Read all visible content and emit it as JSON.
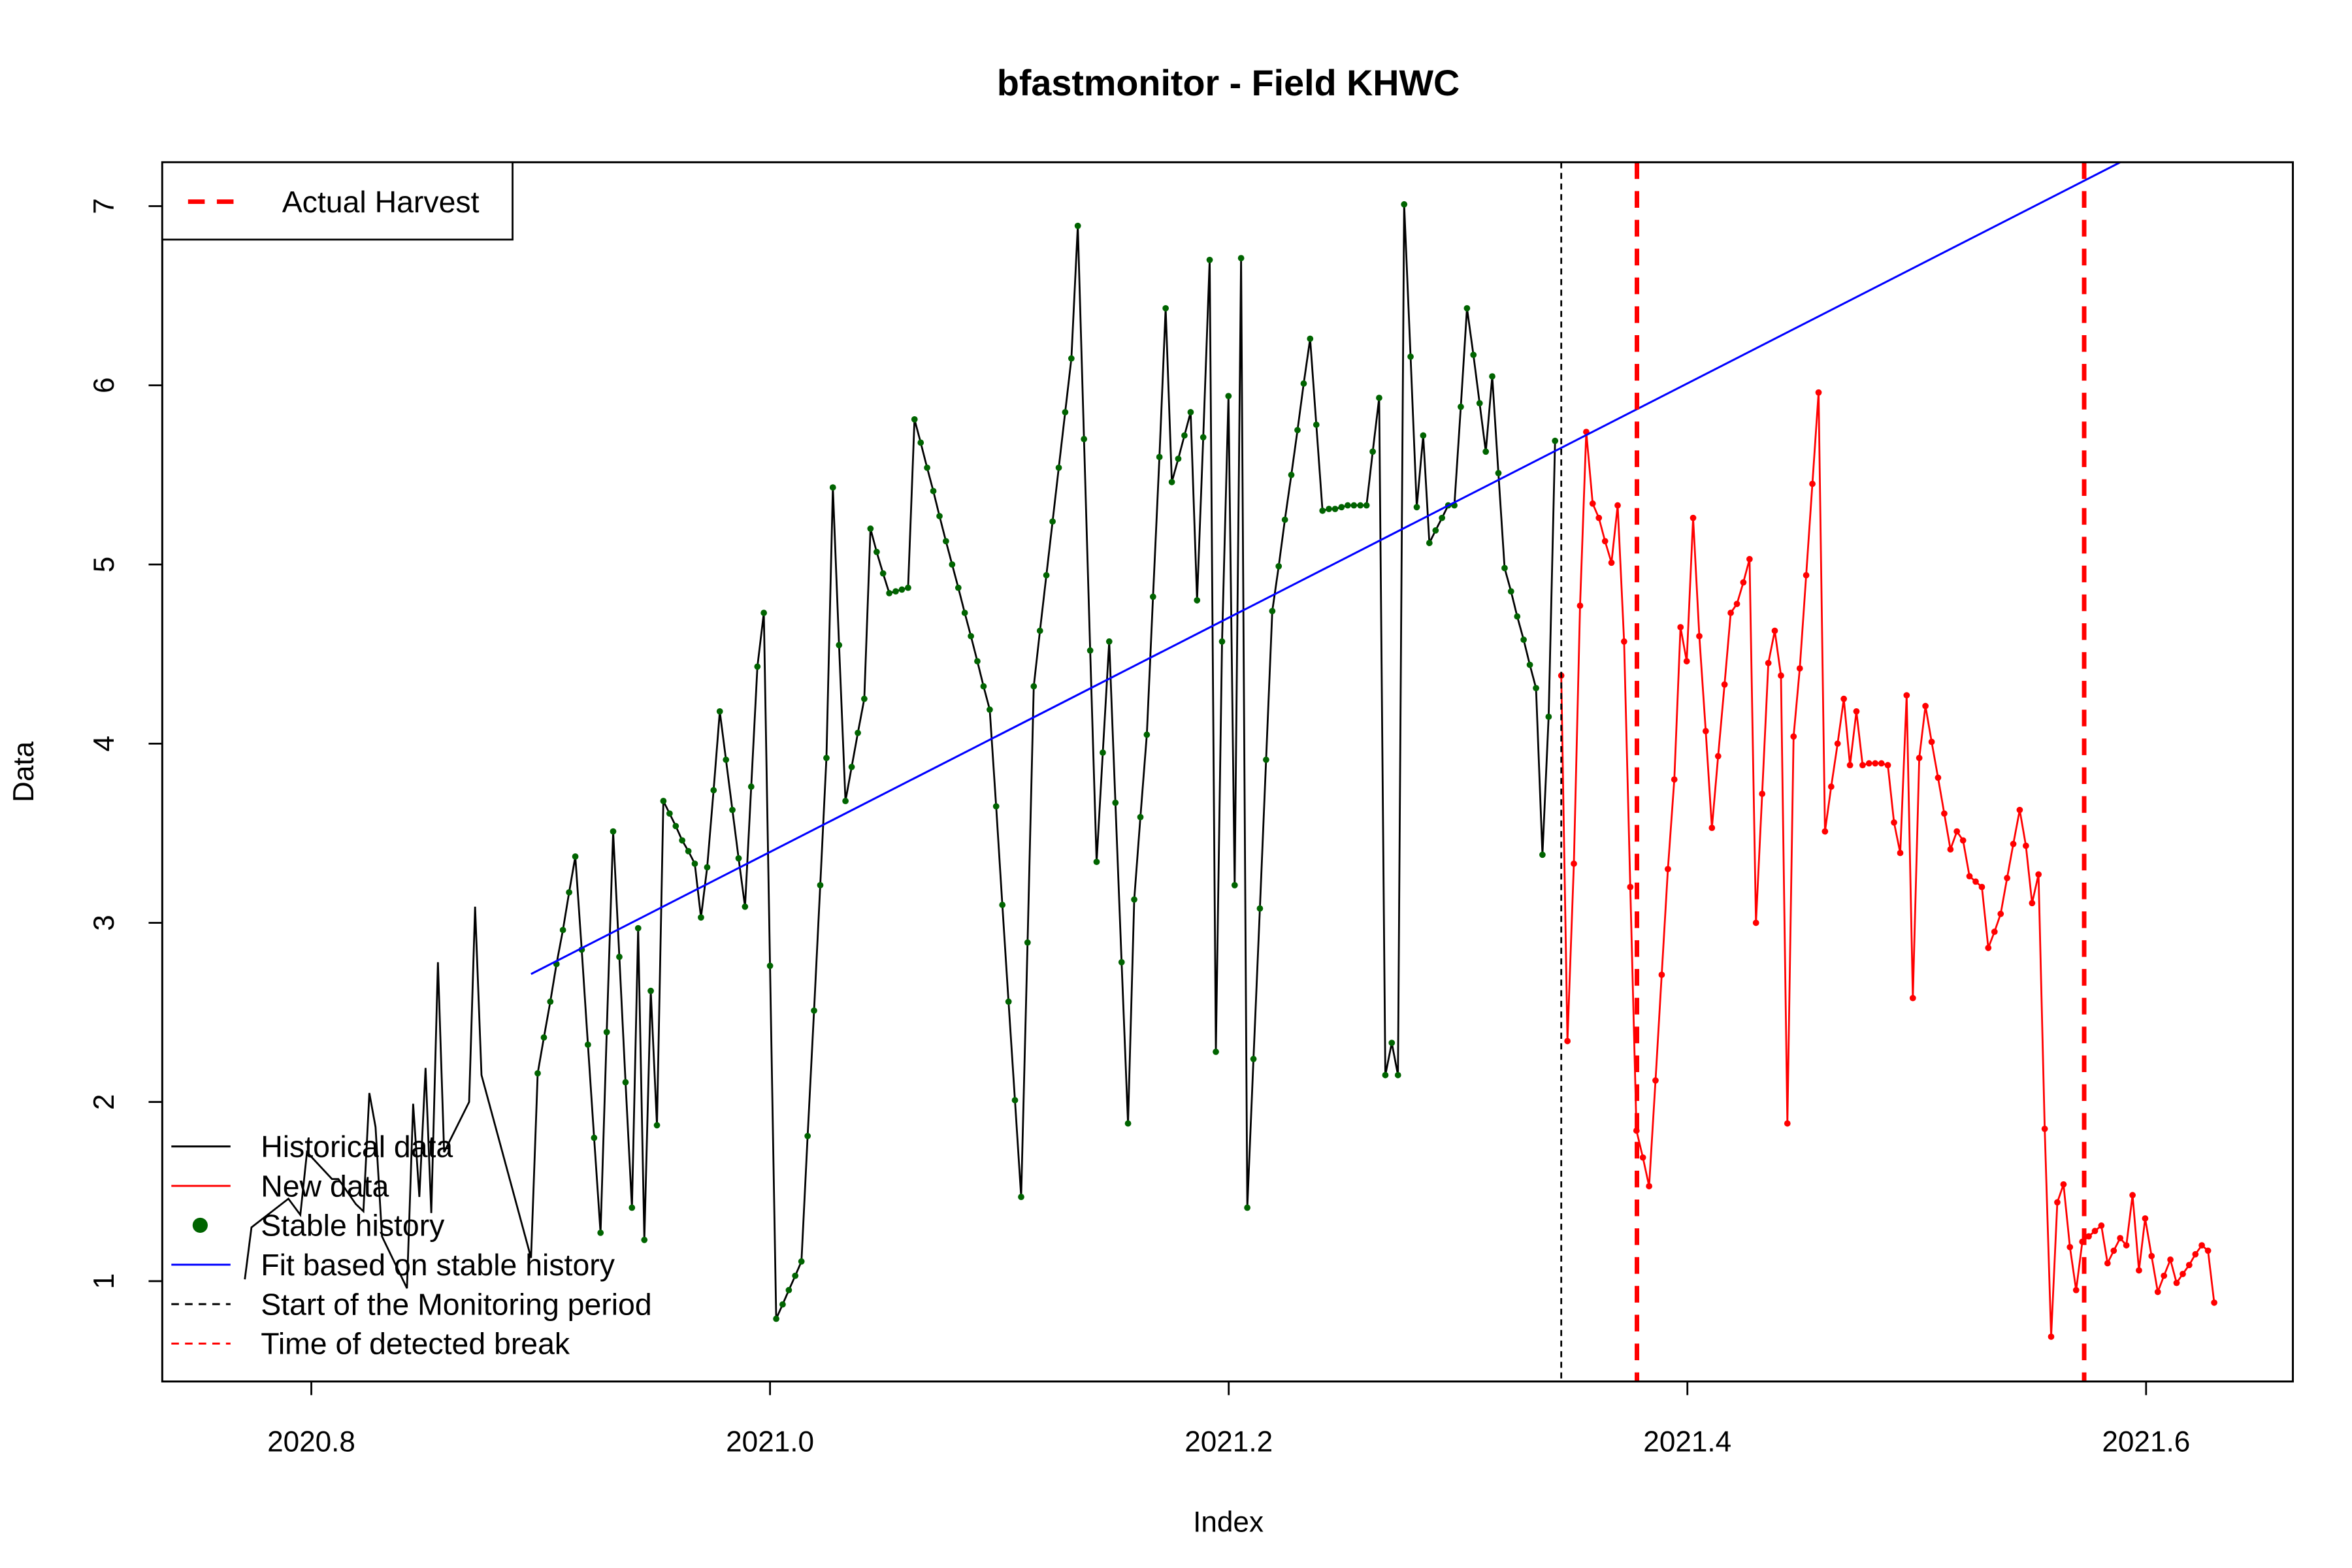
{
  "chart_data": {
    "type": "line",
    "title": "bfastmonitor - Field KHWC",
    "xlabel": "Index",
    "ylabel": "Data",
    "xlim": [
      2020.735,
      2021.664
    ],
    "ylim": [
      0.44,
      7.245
    ],
    "xticks": [
      2020.8,
      2021.0,
      2021.2,
      2021.4,
      2021.6
    ],
    "xtick_labels": [
      "2020.8",
      "2021.0",
      "2021.2",
      "2021.4",
      "2021.6"
    ],
    "yticks": [
      1,
      2,
      3,
      4,
      5,
      6,
      7
    ],
    "ytick_labels": [
      "1",
      "2",
      "3",
      "4",
      "5",
      "6",
      "7"
    ],
    "grid": false,
    "colors": {
      "historical": "#000000",
      "new": "#FF0000",
      "stable": "#006400",
      "fit": "#0000FF",
      "monitor_start": "#000000",
      "harvest": "#FF0000"
    },
    "historical_before_stable": {
      "x": [
        2020.771,
        2020.7739,
        2020.79,
        2020.7952,
        2020.7981,
        2020.809,
        2020.8118,
        2020.8194,
        2020.8227,
        2020.8253,
        2020.828,
        2020.8308,
        2020.8417,
        2020.8444,
        2020.8471,
        2020.8498,
        2020.8523,
        2020.8552,
        2020.8579,
        2020.8688,
        2020.8714,
        2020.8742,
        2020.8958
      ],
      "y": [
        1.01,
        1.3,
        1.46,
        1.37,
        1.72,
        1.57,
        1.57,
        1.43,
        1.39,
        2.05,
        1.86,
        1.25,
        0.96,
        1.99,
        1.47,
        2.19,
        1.38,
        2.78,
        1.72,
        2.0,
        3.09,
        2.15,
        1.13
      ]
    },
    "stable_history": {
      "x": [
        2020.8987,
        2020.9014,
        2020.9042,
        2020.9069,
        2020.9097,
        2020.9124,
        2020.9151,
        2020.9179,
        2020.9206,
        2020.9233,
        2020.9261,
        2020.9288,
        2020.9316,
        2020.9343,
        2020.937,
        2020.9398,
        2020.9425,
        2020.9452,
        2020.948,
        2020.9507,
        2020.9535,
        2020.9562,
        2020.9589,
        2020.9617,
        2020.9644,
        2020.9672,
        2020.9699,
        2020.9726,
        2020.9754,
        2020.9781,
        2020.9808,
        2020.9836,
        2020.9863,
        2020.9891,
        2020.9918,
        2020.9945,
        2020.9973,
        2021.0,
        2021.0027,
        2021.0055,
        2021.0082,
        2021.011,
        2021.0137,
        2021.0164,
        2021.0192,
        2021.0219,
        2021.0246,
        2021.0274,
        2021.0301,
        2021.0329,
        2021.0356,
        2021.0383,
        2021.0411,
        2021.0438,
        2021.0465,
        2021.0493,
        2021.052,
        2021.0548,
        2021.0575,
        2021.0602,
        2021.063,
        2021.0657,
        2021.0685,
        2021.0712,
        2021.0739,
        2021.0767,
        2021.0794,
        2021.0821,
        2021.0849,
        2021.0876,
        2021.0904,
        2021.0931,
        2021.0958,
        2021.0986,
        2021.1013,
        2021.104,
        2021.1068,
        2021.1095,
        2021.1123,
        2021.115,
        2021.1177,
        2021.1205,
        2021.1232,
        2021.1259,
        2021.1287,
        2021.1314,
        2021.1342,
        2021.1369,
        2021.1396,
        2021.1424,
        2021.1451,
        2021.1479,
        2021.1506,
        2021.1533,
        2021.1561,
        2021.1588,
        2021.1615,
        2021.1643,
        2021.167,
        2021.1698,
        2021.1725,
        2021.1752,
        2021.178,
        2021.1807,
        2021.1834,
        2021.1862,
        2021.1889,
        2021.1917,
        2021.1944,
        2021.1971,
        2021.1999,
        2021.2026,
        2021.2054,
        2021.2081,
        2021.2108,
        2021.2136,
        2021.2163,
        2021.219,
        2021.2218,
        2021.2245,
        2021.2273,
        2021.23,
        2021.2327,
        2021.2355,
        2021.2382,
        2021.2409,
        2021.2437,
        2021.2464,
        2021.2492,
        2021.2519,
        2021.2546,
        2021.2574,
        2021.2601,
        2021.2628,
        2021.2656,
        2021.2683,
        2021.2711,
        2021.2738,
        2021.2765,
        2021.2793,
        2021.282,
        2021.2848,
        2021.2875,
        2021.2902,
        2021.293,
        2021.2957,
        2021.2984,
        2021.3012,
        2021.3039,
        2021.3067,
        2021.3094,
        2021.3121,
        2021.3149,
        2021.3176,
        2021.3203,
        2021.3231,
        2021.3258,
        2021.3286,
        2021.3313,
        2021.334,
        2021.3368,
        2021.3395,
        2021.3423
      ],
      "y": [
        2.16,
        2.36,
        2.56,
        2.77,
        2.96,
        3.17,
        3.37,
        2.85,
        2.32,
        1.8,
        1.27,
        2.39,
        3.51,
        2.81,
        2.11,
        1.41,
        2.97,
        1.23,
        2.62,
        1.87,
        3.68,
        3.61,
        3.54,
        3.46,
        3.4,
        3.33,
        3.03,
        3.31,
        3.74,
        4.18,
        3.91,
        3.63,
        3.36,
        3.09,
        3.76,
        4.43,
        4.73,
        2.76,
        0.79,
        0.87,
        0.95,
        1.03,
        1.11,
        1.81,
        2.51,
        3.21,
        3.92,
        5.43,
        4.55,
        3.68,
        3.87,
        4.06,
        4.25,
        5.2,
        5.07,
        4.95,
        4.84,
        4.85,
        4.86,
        4.87,
        5.81,
        5.68,
        5.54,
        5.41,
        5.27,
        5.13,
        5.0,
        4.87,
        4.73,
        4.6,
        4.46,
        4.32,
        4.19,
        3.65,
        3.1,
        2.56,
        2.01,
        1.47,
        2.89,
        4.32,
        4.63,
        4.94,
        5.24,
        5.54,
        5.85,
        6.15,
        6.89,
        5.7,
        4.52,
        3.34,
        3.95,
        4.57,
        3.67,
        2.78,
        1.88,
        3.13,
        3.59,
        4.05,
        4.82,
        5.6,
        6.43,
        5.46,
        5.59,
        5.72,
        5.85,
        4.8,
        5.71,
        6.7,
        2.28,
        4.57,
        5.94,
        3.21,
        6.71,
        1.41,
        2.24,
        3.08,
        3.91,
        4.74,
        4.99,
        5.25,
        5.5,
        5.75,
        6.01,
        6.26,
        5.78,
        5.3,
        5.31,
        5.31,
        5.32,
        5.33,
        5.33,
        5.33,
        5.33,
        5.63,
        5.93,
        2.15,
        2.33,
        2.15,
        7.01,
        6.16,
        5.32,
        5.72,
        5.12,
        5.19,
        5.26,
        5.33,
        5.33,
        5.88,
        6.43,
        6.17,
        5.9,
        5.63,
        6.05,
        5.51,
        4.98,
        4.85,
        4.71,
        4.58,
        4.44,
        4.31,
        3.38,
        4.15,
        5.69
      ]
    },
    "new_data": {
      "x": [
        2021.345,
        2021.3477,
        2021.3505,
        2021.3532,
        2021.3559,
        2021.3587,
        2021.3614,
        2021.3641,
        2021.3669,
        2021.3696,
        2021.3724,
        2021.3751,
        2021.3778,
        2021.3806,
        2021.3833,
        2021.3861,
        2021.3888,
        2021.3915,
        2021.3943,
        2021.397,
        2021.3997,
        2021.4025,
        2021.4052,
        2021.408,
        2021.4107,
        2021.4134,
        2021.4162,
        2021.4189,
        2021.4216,
        2021.4244,
        2021.4271,
        2021.4299,
        2021.4326,
        2021.4353,
        2021.4381,
        2021.4408,
        2021.4436,
        2021.4463,
        2021.449,
        2021.4518,
        2021.4545,
        2021.4572,
        2021.46,
        2021.4627,
        2021.4655,
        2021.4682,
        2021.4709,
        2021.4737,
        2021.4764,
        2021.4792,
        2021.4819,
        2021.4846,
        2021.4874,
        2021.4901,
        2021.4928,
        2021.4956,
        2021.4983,
        2021.5011,
        2021.5038,
        2021.5065,
        2021.5093,
        2021.512,
        2021.5147,
        2021.5175,
        2021.5202,
        2021.523,
        2021.5257,
        2021.5284,
        2021.5312,
        2021.5339,
        2021.5366,
        2021.5394,
        2021.5421,
        2021.5449,
        2021.5476,
        2021.5503,
        2021.5531,
        2021.5558,
        2021.5586,
        2021.5613,
        2021.564,
        2021.5668,
        2021.5695,
        2021.5722,
        2021.575,
        2021.5777,
        2021.5805,
        2021.5832,
        2021.5859,
        2021.5887,
        2021.5914,
        2021.5941,
        2021.5969,
        2021.5996,
        2021.6024,
        2021.6051,
        2021.6078,
        2021.6106,
        2021.6133,
        2021.616,
        2021.6188,
        2021.6215,
        2021.6243,
        2021.627,
        2021.6297
      ],
      "y": [
        4.38,
        2.34,
        3.33,
        4.77,
        5.74,
        5.34,
        5.26,
        5.13,
        5.01,
        5.33,
        4.57,
        3.2,
        1.84,
        1.69,
        1.53,
        2.12,
        2.71,
        3.3,
        3.8,
        4.65,
        4.46,
        5.26,
        4.6,
        4.07,
        3.53,
        3.93,
        4.33,
        4.73,
        4.78,
        4.9,
        5.03,
        3.0,
        3.72,
        4.45,
        4.63,
        4.38,
        1.88,
        4.04,
        4.42,
        4.94,
        5.45,
        5.96,
        3.51,
        3.76,
        4.0,
        4.25,
        3.88,
        4.18,
        3.88,
        3.89,
        3.89,
        3.89,
        3.88,
        3.56,
        3.39,
        4.27,
        2.58,
        3.92,
        4.21,
        4.01,
        3.81,
        3.61,
        3.41,
        3.51,
        3.46,
        3.26,
        3.23,
        3.2,
        2.86,
        2.95,
        3.05,
        3.25,
        3.44,
        3.63,
        3.43,
        3.11,
        3.27,
        1.85,
        0.69,
        1.44,
        1.54,
        1.19,
        0.95,
        1.22,
        1.25,
        1.28,
        1.31,
        1.1,
        1.17,
        1.24,
        1.2,
        1.48,
        1.06,
        1.35,
        1.14,
        0.94,
        1.03,
        1.12,
        0.99,
        1.04,
        1.09,
        1.15,
        1.2,
        1.17,
        0.88
      ]
    },
    "fit_line": {
      "x": [
        2020.8958,
        2021.664
      ],
      "y": [
        2.714,
        7.737
      ]
    },
    "monitor_start_x": 2021.345,
    "harvest_x": [
      2021.378,
      2021.573
    ],
    "legend_top": {
      "placement": "top-left",
      "label": "Actual Harvest"
    },
    "legend_bottom": {
      "placement": "bottom-left",
      "items": [
        {
          "label": "Historical data",
          "type": "line",
          "color": "#000000"
        },
        {
          "label": "New data",
          "type": "line",
          "color": "#FF0000"
        },
        {
          "label": "Stable history",
          "type": "point",
          "color": "#006400"
        },
        {
          "label": "Fit based on stable history",
          "type": "line",
          "color": "#0000FF"
        },
        {
          "label": "Start of the Monitoring period",
          "type": "dashed",
          "color": "#000000"
        },
        {
          "label": "Time of detected break",
          "type": "dashed",
          "color": "#FF0000"
        }
      ]
    }
  }
}
